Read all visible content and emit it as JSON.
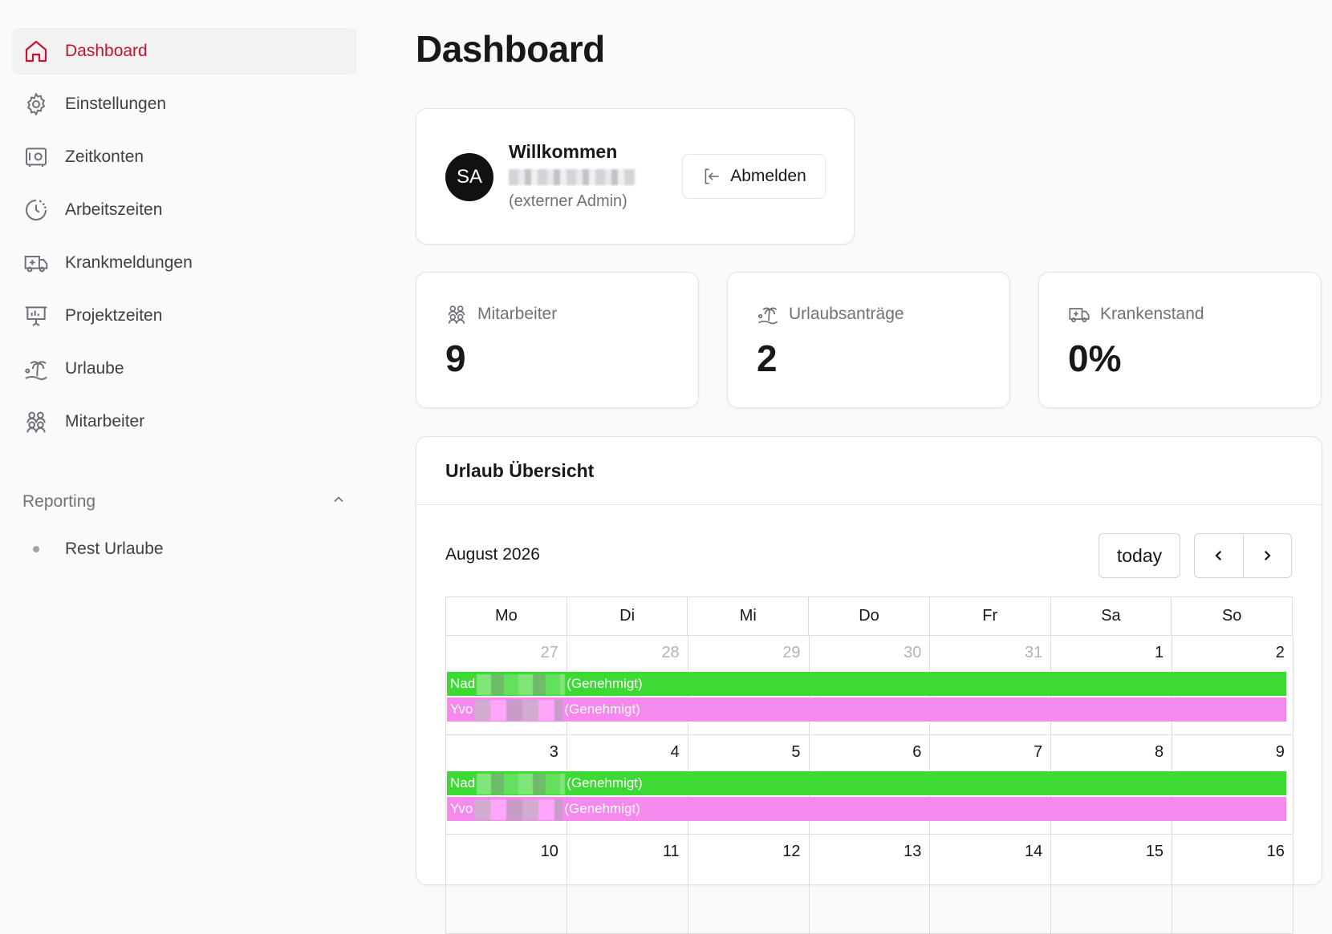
{
  "sidebar": {
    "items": [
      {
        "label": "Dashboard",
        "icon": "home-icon",
        "active": true
      },
      {
        "label": "Einstellungen",
        "icon": "gear-icon"
      },
      {
        "label": "Zeitkonten",
        "icon": "safe-icon"
      },
      {
        "label": "Arbeitszeiten",
        "icon": "clock-icon"
      },
      {
        "label": "Krankmeldungen",
        "icon": "ambulance-icon"
      },
      {
        "label": "Projektzeiten",
        "icon": "presentation-icon"
      },
      {
        "label": "Urlaube",
        "icon": "palm-tree-icon"
      },
      {
        "label": "Mitarbeiter",
        "icon": "users-icon"
      }
    ],
    "group": {
      "label": "Reporting",
      "expanded": true,
      "items": [
        {
          "label": "Rest Urlaube"
        }
      ]
    }
  },
  "page": {
    "title": "Dashboard"
  },
  "welcome": {
    "avatar": "SA",
    "title": "Willkommen",
    "name": "████████████",
    "role": "(externer Admin)",
    "logout_label": "Abmelden"
  },
  "stats": [
    {
      "label": "Mitarbeiter",
      "value": "9",
      "icon": "users-icon"
    },
    {
      "label": "Urlaubsanträge",
      "value": "2",
      "icon": "palm-tree-icon"
    },
    {
      "label": "Krankenstand",
      "value": "0%",
      "icon": "ambulance-icon"
    }
  ],
  "calendar": {
    "title": "Urlaub Übersicht",
    "month": "August 2026",
    "today_label": "today",
    "weekdays": [
      "Mo",
      "Di",
      "Mi",
      "Do",
      "Fr",
      "Sa",
      "So"
    ],
    "weeks": [
      {
        "days": [
          "27",
          "28",
          "29",
          "30",
          "31",
          "1",
          "2"
        ],
        "muted": [
          true,
          true,
          true,
          true,
          true,
          false,
          false
        ],
        "events": [
          {
            "prefix": "Nad",
            "suffix": "(Genehmigt)",
            "color": "#3dd934"
          },
          {
            "prefix": "Yvo",
            "suffix": "(Genehmigt)",
            "color": "#f589ee"
          }
        ]
      },
      {
        "days": [
          "3",
          "4",
          "5",
          "6",
          "7",
          "8",
          "9"
        ],
        "muted": [
          false,
          false,
          false,
          false,
          false,
          false,
          false
        ],
        "events": [
          {
            "prefix": "Nad",
            "suffix": "(Genehmigt)",
            "color": "#3dd934"
          },
          {
            "prefix": "Yvo",
            "suffix": "(Genehmigt)",
            "color": "#f589ee"
          }
        ]
      },
      {
        "days": [
          "10",
          "11",
          "12",
          "13",
          "14",
          "15",
          "16"
        ],
        "muted": [
          false,
          false,
          false,
          false,
          false,
          false,
          false
        ],
        "events": []
      }
    ]
  },
  "colors": {
    "accent": "#c8102e",
    "approved_green": "#3dd934",
    "approved_pink": "#f589ee"
  }
}
